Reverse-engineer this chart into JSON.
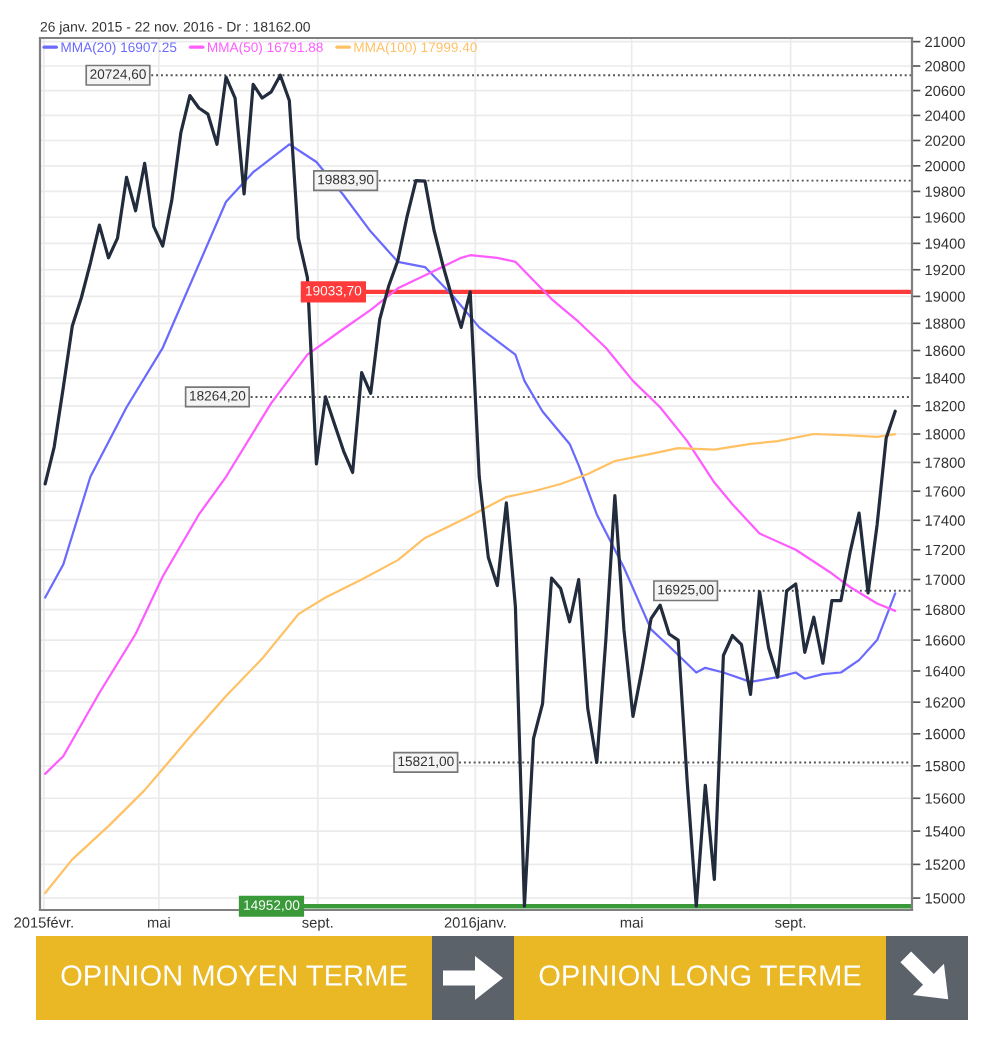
{
  "chart_data": {
    "type": "line",
    "title": "26 janv. 2015 - 22 nov. 2016 - Dr : 18162.00",
    "x": [
      "2015-02-02",
      "2015-02-09",
      "2015-02-16",
      "2015-02-23",
      "2015-03-02",
      "2015-03-09",
      "2015-03-16",
      "2015-03-23",
      "2015-03-30",
      "2015-04-06",
      "2015-04-13",
      "2015-04-20",
      "2015-04-27",
      "2015-05-04",
      "2015-05-11",
      "2015-05-18",
      "2015-05-25",
      "2015-06-01",
      "2015-06-08",
      "2015-06-15",
      "2015-06-22",
      "2015-06-29",
      "2015-07-06",
      "2015-07-13",
      "2015-07-20",
      "2015-07-27",
      "2015-08-03",
      "2015-08-10",
      "2015-08-17",
      "2015-08-24",
      "2015-08-31",
      "2015-09-07",
      "2015-09-14",
      "2015-09-21",
      "2015-09-28",
      "2015-10-05",
      "2015-10-12",
      "2015-10-19",
      "2015-10-26",
      "2015-11-02",
      "2015-11-09",
      "2015-11-16",
      "2015-11-23",
      "2015-11-30",
      "2015-12-07",
      "2015-12-14",
      "2015-12-21",
      "2015-12-28",
      "2016-01-04",
      "2016-01-11",
      "2016-01-18",
      "2016-01-25",
      "2016-02-01",
      "2016-02-08",
      "2016-02-15",
      "2016-02-22",
      "2016-02-29",
      "2016-03-07",
      "2016-03-14",
      "2016-03-21",
      "2016-03-28",
      "2016-04-04",
      "2016-04-11",
      "2016-04-18",
      "2016-04-25",
      "2016-05-02",
      "2016-05-09",
      "2016-05-16",
      "2016-05-23",
      "2016-05-30",
      "2016-06-06",
      "2016-06-13",
      "2016-06-20",
      "2016-06-27",
      "2016-07-04",
      "2016-07-11",
      "2016-07-18",
      "2016-07-25",
      "2016-08-01",
      "2016-08-08",
      "2016-08-15",
      "2016-08-22",
      "2016-08-29",
      "2016-09-05",
      "2016-09-12",
      "2016-09-19",
      "2016-09-26",
      "2016-10-03",
      "2016-10-10",
      "2016-10-17",
      "2016-10-24",
      "2016-10-31",
      "2016-11-07",
      "2016-11-14",
      "2016-11-21"
    ],
    "series": [
      {
        "name": "MMA(20) 16907.25",
        "color": "#6a6aff",
        "x": [
          "2015-02-02",
          "2015-02-16",
          "2015-03-09",
          "2015-04-06",
          "2015-05-04",
          "2015-06-22",
          "2015-07-13",
          "2015-08-10",
          "2015-08-31",
          "2015-09-21",
          "2015-10-12",
          "2015-11-02",
          "2015-11-23",
          "2015-12-14",
          "2016-01-04",
          "2016-02-01",
          "2016-02-08",
          "2016-02-22",
          "2016-03-14",
          "2016-03-21",
          "2016-04-04",
          "2016-04-25",
          "2016-05-16",
          "2016-05-30",
          "2016-06-20",
          "2016-06-27",
          "2016-07-11",
          "2016-08-01",
          "2016-08-22",
          "2016-09-05",
          "2016-09-12",
          "2016-09-26",
          "2016-10-10",
          "2016-10-24",
          "2016-11-07",
          "2016-11-21"
        ],
        "values": [
          16880,
          17100,
          17700,
          18190,
          18620,
          19720,
          19950,
          20170,
          20030,
          19770,
          19490,
          19260,
          19220,
          19010,
          18770,
          18570,
          18380,
          18160,
          17930,
          17780,
          17440,
          17080,
          16670,
          16560,
          16390,
          16420,
          16390,
          16330,
          16360,
          16390,
          16350,
          16380,
          16390,
          16470,
          16600,
          16907.25
        ]
      },
      {
        "name": "MMA(50) 16791.88",
        "color": "#ff5cff",
        "x": [
          "2015-02-02",
          "2015-02-16",
          "2015-03-16",
          "2015-04-13",
          "2015-05-04",
          "2015-06-01",
          "2015-06-22",
          "2015-07-27",
          "2015-08-24",
          "2015-09-21",
          "2015-10-12",
          "2015-11-02",
          "2015-11-30",
          "2015-12-21",
          "2015-12-28",
          "2016-01-18",
          "2016-02-01",
          "2016-02-29",
          "2016-03-21",
          "2016-04-11",
          "2016-05-02",
          "2016-05-23",
          "2016-06-13",
          "2016-07-04",
          "2016-07-18",
          "2016-08-08",
          "2016-09-05",
          "2016-10-03",
          "2016-10-17",
          "2016-11-07",
          "2016-11-21"
        ],
        "values": [
          15750,
          15860,
          16260,
          16640,
          17020,
          17440,
          17700,
          18220,
          18570,
          18760,
          18900,
          19060,
          19190,
          19290,
          19310,
          19290,
          19260,
          18980,
          18810,
          18620,
          18380,
          18190,
          17950,
          17660,
          17510,
          17310,
          17200,
          17040,
          16950,
          16840,
          16791.88
        ]
      },
      {
        "name": "MMA(100) 17999.40",
        "color": "#ffc164",
        "x": [
          "2015-02-02",
          "2015-02-23",
          "2015-03-23",
          "2015-04-20",
          "2015-05-04",
          "2015-05-25",
          "2015-06-22",
          "2015-07-20",
          "2015-08-17",
          "2015-09-07",
          "2015-10-05",
          "2015-11-02",
          "2015-11-23",
          "2015-12-28",
          "2016-01-25",
          "2016-02-15",
          "2016-03-07",
          "2016-03-28",
          "2016-04-18",
          "2016-05-16",
          "2016-06-06",
          "2016-07-04",
          "2016-08-01",
          "2016-08-22",
          "2016-09-19",
          "2016-10-17",
          "2016-11-07",
          "2016-11-21"
        ],
        "values": [
          15030,
          15230,
          15430,
          15650,
          15780,
          15980,
          16240,
          16480,
          16770,
          16880,
          17000,
          17130,
          17280,
          17430,
          17560,
          17600,
          17650,
          17720,
          17810,
          17860,
          17900,
          17890,
          17930,
          17950,
          18000,
          17990,
          17980,
          17999.4
        ]
      },
      {
        "color": "#222c3c",
        "values": [
          17650,
          17910,
          18330,
          18780,
          18990,
          19250,
          19540,
          19290,
          19440,
          19910,
          19650,
          20020,
          19530,
          19380,
          19730,
          20260,
          20560,
          20460,
          20410,
          20170,
          20710,
          20540,
          19780,
          20650,
          20540,
          20590,
          20724.6,
          20520,
          19440,
          19140,
          17790,
          18264.2,
          18070,
          17880,
          17730,
          18440,
          18290,
          18830,
          19080,
          19270,
          19600,
          19883.9,
          19880,
          19500,
          19230,
          18990,
          18770,
          19033.7,
          17700,
          17150,
          16960,
          17520,
          16820,
          14952,
          15970,
          16190,
          17010,
          16940,
          16720,
          17000,
          16160,
          15821,
          16600,
          17570,
          16670,
          16110,
          16410,
          16740,
          16830,
          16640,
          16600,
          15700,
          14952,
          15680,
          15110,
          16500,
          16630,
          16570,
          16250,
          16920,
          16550,
          16360,
          16925,
          16970,
          16520,
          16750,
          16450,
          16860,
          16860,
          17180,
          17450,
          16910,
          17370,
          17970,
          18162
        ]
      }
    ],
    "xlim": [
      "2015-01-29",
      "2016-12-04"
    ],
    "xticks": [
      {
        "value": "2015-02-01",
        "label": "2015févr."
      },
      {
        "value": "2015-05-01",
        "label": "mai"
      },
      {
        "value": "2015-09-01",
        "label": "sept."
      },
      {
        "value": "2016-01-01",
        "label": "2016janv."
      },
      {
        "value": "2016-05-01",
        "label": "mai"
      },
      {
        "value": "2016-09-01",
        "label": "sept."
      }
    ],
    "ylim": [
      14930,
      21030
    ],
    "yticks": [
      15000,
      15200,
      15400,
      15600,
      15800,
      16000,
      16200,
      16400,
      16600,
      16800,
      17000,
      17200,
      17400,
      17600,
      17800,
      18000,
      18200,
      18400,
      18600,
      18800,
      19000,
      19200,
      19400,
      19600,
      19800,
      20000,
      20200,
      20400,
      20600,
      20800,
      21000
    ],
    "log": "y",
    "grid": true,
    "legend": "top left",
    "ref_lines": [
      {
        "axis": "y",
        "value": 20724.6,
        "label": "20724,60",
        "color": "#555555",
        "line_style": "dotted"
      },
      {
        "axis": "y",
        "value": 19883.9,
        "label": "19883,90",
        "color": "#555555",
        "line_style": "dotted"
      },
      {
        "axis": "y",
        "value": 19033.7,
        "label": "19033,70",
        "color": "#ff3a3a",
        "line_style": "solid"
      },
      {
        "axis": "y",
        "value": 18264.2,
        "label": "18264,20",
        "color": "#555555",
        "line_style": "dotted"
      },
      {
        "axis": "y",
        "value": 16925,
        "label": "16925,00",
        "color": "#555555",
        "line_style": "dotted"
      },
      {
        "axis": "y",
        "value": 15821,
        "label": "15821,00",
        "color": "#555555",
        "line_style": "dotted"
      },
      {
        "axis": "y",
        "value": 14952,
        "label": "14952,00",
        "color": "#3a9a3a",
        "line_style": "solid"
      }
    ],
    "annotations": [
      "OPINION MOYEN TERME",
      "OPINION LONG TERME"
    ]
  }
}
